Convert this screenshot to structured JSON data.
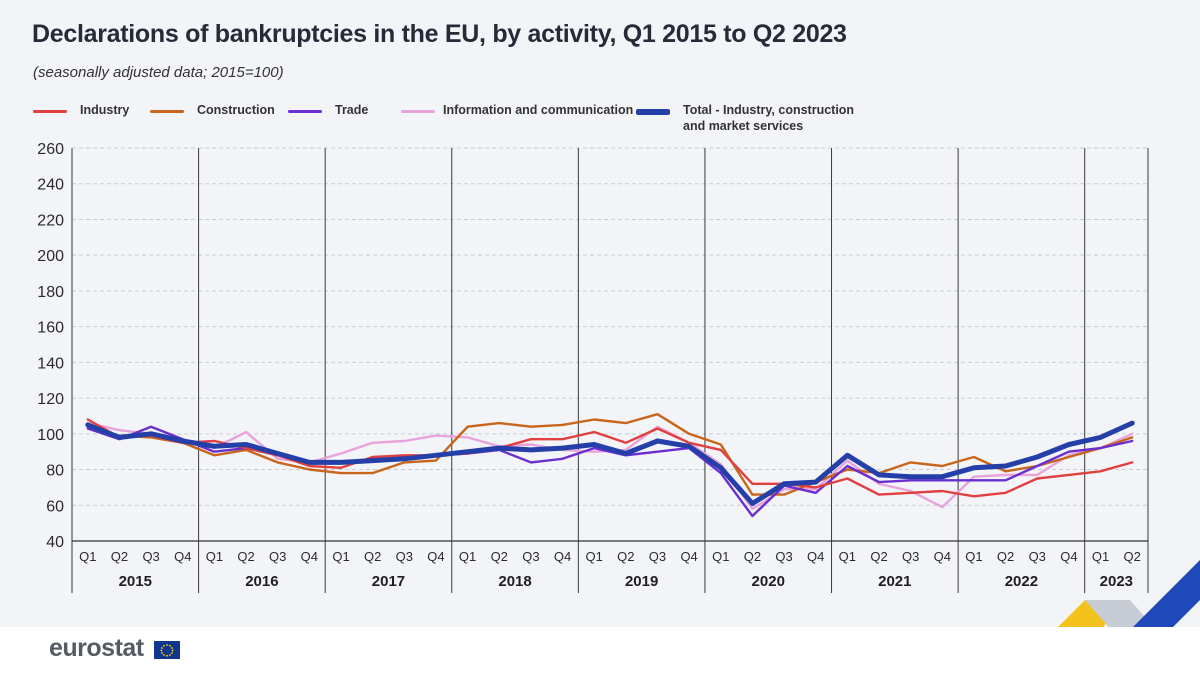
{
  "title": "Declarations of bankruptcies in the EU, by activity, Q1 2015 to Q2 2023",
  "subtitle": "(seasonally adjusted data; 2015=100)",
  "logo": {
    "text": "eurostat",
    "flag_icon": "eu-flag-icon"
  },
  "colors": {
    "industry": "#e04040",
    "construction": "#c8651b",
    "trade": "#6b2fd0",
    "info": "#e9a3dc",
    "total": "#2440a8",
    "grid": "#c9ccd3",
    "axis": "#333333"
  },
  "legend": [
    {
      "key": "industry",
      "label": "Industry"
    },
    {
      "key": "construction",
      "label": "Construction"
    },
    {
      "key": "trade",
      "label": "Trade"
    },
    {
      "key": "info",
      "label": "Information and communication"
    },
    {
      "key": "total",
      "label": "Total - Industry, construction\nand market services"
    }
  ],
  "chart_data": {
    "type": "line",
    "title": "Declarations of bankruptcies in the EU, by activity, Q1 2015 to Q2 2023",
    "subtitle": "(seasonally adjusted data; 2015=100)",
    "ylim": [
      40,
      260
    ],
    "yticks": [
      40,
      60,
      80,
      100,
      120,
      140,
      160,
      180,
      200,
      220,
      240,
      260
    ],
    "grid": true,
    "legend_position": "top",
    "years": [
      "2015",
      "2016",
      "2017",
      "2018",
      "2019",
      "2020",
      "2021",
      "2022",
      "2023"
    ],
    "quarters": [
      "Q1",
      "Q2",
      "Q3",
      "Q4",
      "Q1",
      "Q2",
      "Q3",
      "Q4",
      "Q1",
      "Q2",
      "Q3",
      "Q4",
      "Q1",
      "Q2",
      "Q3",
      "Q4",
      "Q1",
      "Q2",
      "Q3",
      "Q4",
      "Q1",
      "Q2",
      "Q3",
      "Q4",
      "Q1",
      "Q2",
      "Q3",
      "Q4",
      "Q1",
      "Q2",
      "Q3",
      "Q4",
      "Q1",
      "Q2"
    ],
    "series": [
      {
        "key": "industry",
        "name": "Industry",
        "values": [
          108,
          98,
          99,
          95,
          96,
          92,
          88,
          82,
          81,
          87,
          88,
          88,
          89,
          92,
          97,
          97,
          101,
          95,
          103,
          95,
          91,
          72,
          72,
          70,
          75,
          66,
          67,
          68,
          65,
          67,
          75,
          77,
          79,
          84
        ]
      },
      {
        "key": "construction",
        "name": "Construction",
        "values": [
          104,
          99,
          98,
          95,
          88,
          91,
          84,
          80,
          78,
          78,
          84,
          85,
          104,
          106,
          104,
          105,
          108,
          106,
          111,
          100,
          94,
          66,
          66,
          73,
          80,
          78,
          84,
          82,
          87,
          79,
          82,
          87,
          92,
          98
        ]
      },
      {
        "key": "trade",
        "name": "Trade",
        "values": [
          103,
          97,
          104,
          97,
          90,
          92,
          88,
          84,
          84,
          86,
          86,
          88,
          89,
          91,
          84,
          86,
          92,
          88,
          90,
          92,
          78,
          54,
          71,
          67,
          82,
          73,
          74,
          74,
          74,
          74,
          82,
          90,
          92,
          96
        ]
      },
      {
        "key": "info",
        "name": "Information and communication",
        "values": [
          106,
          102,
          100,
          96,
          92,
          101,
          86,
          84,
          89,
          95,
          96,
          99,
          98,
          93,
          94,
          91,
          90,
          91,
          104,
          95,
          83,
          58,
          69,
          69,
          85,
          72,
          68,
          59,
          76,
          77,
          77,
          88,
          92,
          100
        ]
      },
      {
        "key": "total",
        "name": "Total - Industry, construction and market services",
        "values": [
          105,
          98,
          100,
          96,
          93,
          94,
          89,
          84,
          84,
          85,
          86,
          88,
          90,
          92,
          91,
          92,
          94,
          89,
          96,
          93,
          81,
          61,
          72,
          73,
          88,
          77,
          76,
          76,
          81,
          82,
          87,
          94,
          98,
          106
        ]
      }
    ]
  }
}
